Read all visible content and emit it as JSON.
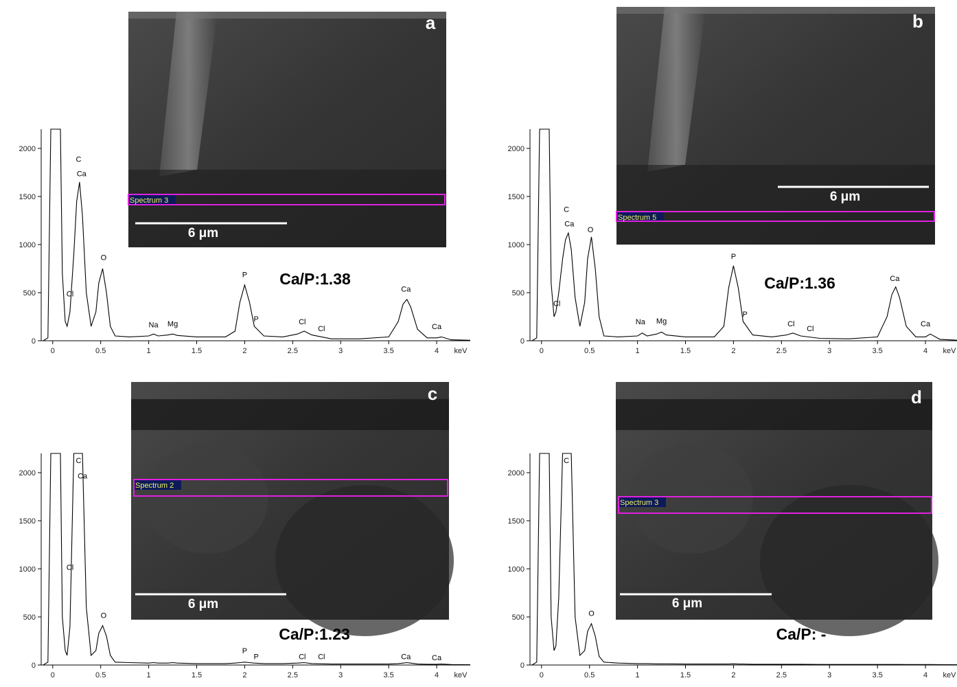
{
  "chart_data": [
    {
      "type": "line",
      "panel_label": "a",
      "inset_label": "Spectrum 3",
      "scale_bar_label": "6 μm",
      "ratio_label": "Ca/P:1.38",
      "x_label": "keV",
      "color": "#000000",
      "xlim": [
        -0.12,
        4.35
      ],
      "ylim": [
        0,
        2200
      ],
      "xticks": [
        0,
        0.5,
        1,
        1.5,
        2,
        2.5,
        3,
        3.5,
        4
      ],
      "yticks": [
        0,
        500,
        1000,
        1500,
        2000
      ],
      "x": [
        -0.1,
        -0.05,
        -0.02,
        0.08,
        0.1,
        0.13,
        0.15,
        0.18,
        0.22,
        0.25,
        0.28,
        0.31,
        0.35,
        0.4,
        0.45,
        0.48,
        0.52,
        0.56,
        0.6,
        0.65,
        0.8,
        1.0,
        1.05,
        1.1,
        1.2,
        1.25,
        1.3,
        1.5,
        1.8,
        1.9,
        1.95,
        2.0,
        2.05,
        2.1,
        2.2,
        2.4,
        2.55,
        2.62,
        2.7,
        2.9,
        3.2,
        3.5,
        3.6,
        3.65,
        3.69,
        3.73,
        3.8,
        3.9,
        4.0,
        4.05,
        4.15,
        4.35
      ],
      "values": [
        0,
        30,
        2200,
        2200,
        700,
        200,
        150,
        300,
        900,
        1450,
        1650,
        1300,
        500,
        150,
        300,
        600,
        750,
        500,
        150,
        50,
        40,
        50,
        70,
        50,
        60,
        70,
        55,
        40,
        40,
        100,
        400,
        580,
        400,
        150,
        50,
        40,
        70,
        100,
        60,
        20,
        20,
        40,
        200,
        380,
        430,
        350,
        120,
        30,
        30,
        40,
        10,
        5
      ],
      "annotations": [
        {
          "text": "C",
          "x": 0.27,
          "y": 1860
        },
        {
          "text": "Ca",
          "x": 0.3,
          "y": 1710
        },
        {
          "text": "Cl",
          "x": 0.18,
          "y": 460
        },
        {
          "text": "O",
          "x": 0.53,
          "y": 840
        },
        {
          "text": "Na",
          "x": 1.05,
          "y": 140
        },
        {
          "text": "Mg",
          "x": 1.25,
          "y": 150
        },
        {
          "text": "P",
          "x": 2.0,
          "y": 660
        },
        {
          "text": "P",
          "x": 2.12,
          "y": 200
        },
        {
          "text": "Cl",
          "x": 2.6,
          "y": 170
        },
        {
          "text": "Cl",
          "x": 2.8,
          "y": 100
        },
        {
          "text": "Ca",
          "x": 3.68,
          "y": 510
        },
        {
          "text": "Ca",
          "x": 4.0,
          "y": 120
        }
      ]
    },
    {
      "type": "line",
      "panel_label": "b",
      "inset_label": "Spectrum 5",
      "scale_bar_label": "6 μm",
      "ratio_label": "Ca/P:1.36",
      "x_label": "keV",
      "color": "#000000",
      "xlim": [
        -0.12,
        4.35
      ],
      "ylim": [
        0,
        2200
      ],
      "xticks": [
        0,
        0.5,
        1,
        1.5,
        2,
        2.5,
        3,
        3.5,
        4
      ],
      "yticks": [
        0,
        500,
        1000,
        1500,
        2000
      ],
      "x": [
        -0.1,
        -0.05,
        -0.02,
        0.08,
        0.1,
        0.13,
        0.15,
        0.18,
        0.22,
        0.25,
        0.28,
        0.31,
        0.35,
        0.4,
        0.45,
        0.48,
        0.52,
        0.56,
        0.6,
        0.65,
        0.8,
        1.0,
        1.05,
        1.1,
        1.2,
        1.25,
        1.3,
        1.5,
        1.8,
        1.9,
        1.95,
        2.0,
        2.05,
        2.1,
        2.2,
        2.4,
        2.55,
        2.62,
        2.7,
        2.9,
        3.2,
        3.5,
        3.6,
        3.65,
        3.69,
        3.73,
        3.8,
        3.9,
        4.0,
        4.05,
        4.15,
        4.35
      ],
      "values": [
        0,
        30,
        2200,
        2200,
        600,
        250,
        300,
        500,
        850,
        1050,
        1120,
        950,
        450,
        150,
        400,
        850,
        1080,
        750,
        250,
        50,
        40,
        50,
        80,
        50,
        70,
        90,
        60,
        40,
        40,
        150,
        550,
        780,
        550,
        200,
        60,
        40,
        60,
        80,
        50,
        25,
        20,
        40,
        250,
        480,
        560,
        450,
        150,
        40,
        40,
        70,
        15,
        5
      ],
      "annotations": [
        {
          "text": "C",
          "x": 0.26,
          "y": 1340
        },
        {
          "text": "Ca",
          "x": 0.29,
          "y": 1190
        },
        {
          "text": "Cl",
          "x": 0.16,
          "y": 360
        },
        {
          "text": "O",
          "x": 0.51,
          "y": 1130
        },
        {
          "text": "Na",
          "x": 1.03,
          "y": 170
        },
        {
          "text": "Mg",
          "x": 1.25,
          "y": 180
        },
        {
          "text": "P",
          "x": 2.0,
          "y": 850
        },
        {
          "text": "P",
          "x": 2.12,
          "y": 250
        },
        {
          "text": "Cl",
          "x": 2.6,
          "y": 150
        },
        {
          "text": "Cl",
          "x": 2.8,
          "y": 100
        },
        {
          "text": "Ca",
          "x": 3.68,
          "y": 620
        },
        {
          "text": "Ca",
          "x": 4.0,
          "y": 150
        }
      ]
    },
    {
      "type": "line",
      "panel_label": "c",
      "inset_label": "Spectrum 2",
      "scale_bar_label": "6 μm",
      "ratio_label": "Ca/P:1.23",
      "x_label": "keV",
      "color": "#000000",
      "xlim": [
        -0.12,
        4.35
      ],
      "ylim": [
        0,
        2200
      ],
      "xticks": [
        0,
        0.5,
        1,
        1.5,
        2,
        2.5,
        3,
        3.5,
        4
      ],
      "yticks": [
        0,
        500,
        1000,
        1500,
        2000
      ],
      "x": [
        -0.1,
        -0.05,
        -0.02,
        0.08,
        0.1,
        0.13,
        0.15,
        0.18,
        0.22,
        0.25,
        0.28,
        0.31,
        0.35,
        0.4,
        0.45,
        0.48,
        0.52,
        0.56,
        0.6,
        0.65,
        0.8,
        1.0,
        1.05,
        1.1,
        1.2,
        1.25,
        1.3,
        1.5,
        1.8,
        1.9,
        1.95,
        2.0,
        2.05,
        2.1,
        2.2,
        2.4,
        2.55,
        2.62,
        2.7,
        2.9,
        3.2,
        3.5,
        3.6,
        3.65,
        3.69,
        3.73,
        3.8,
        3.9,
        4.0,
        4.05,
        4.15,
        4.35
      ],
      "values": [
        0,
        30,
        2200,
        2200,
        500,
        150,
        100,
        400,
        2200,
        2200,
        2200,
        2200,
        600,
        100,
        150,
        330,
        410,
        300,
        100,
        30,
        25,
        20,
        25,
        20,
        20,
        25,
        20,
        15,
        15,
        20,
        25,
        30,
        25,
        20,
        15,
        15,
        20,
        25,
        15,
        10,
        10,
        10,
        15,
        20,
        25,
        20,
        10,
        8,
        8,
        10,
        5,
        3
      ],
      "annotations": [
        {
          "text": "C",
          "x": 0.27,
          "y": 2100
        },
        {
          "text": "Ca",
          "x": 0.31,
          "y": 1940
        },
        {
          "text": "Cl",
          "x": 0.18,
          "y": 990
        },
        {
          "text": "O",
          "x": 0.53,
          "y": 490
        },
        {
          "text": "P",
          "x": 2.0,
          "y": 120
        },
        {
          "text": "P",
          "x": 2.12,
          "y": 60
        },
        {
          "text": "Cl",
          "x": 2.6,
          "y": 60
        },
        {
          "text": "Cl",
          "x": 2.8,
          "y": 60
        },
        {
          "text": "Ca",
          "x": 3.68,
          "y": 60
        },
        {
          "text": "Ca",
          "x": 4.0,
          "y": 50
        }
      ]
    },
    {
      "type": "line",
      "panel_label": "d",
      "inset_label": "Spectrum 3",
      "scale_bar_label": "6 μm",
      "ratio_label": "Ca/P: -",
      "x_label": "keV",
      "color": "#000000",
      "xlim": [
        -0.12,
        4.35
      ],
      "ylim": [
        0,
        2200
      ],
      "xticks": [
        0,
        0.5,
        1,
        1.5,
        2,
        2.5,
        3,
        3.5,
        4
      ],
      "yticks": [
        0,
        500,
        1000,
        1500,
        2000
      ],
      "x": [
        -0.1,
        -0.05,
        -0.02,
        0.08,
        0.1,
        0.13,
        0.15,
        0.18,
        0.22,
        0.25,
        0.28,
        0.31,
        0.35,
        0.4,
        0.45,
        0.48,
        0.52,
        0.56,
        0.6,
        0.65,
        0.8,
        1.0,
        1.05,
        1.1,
        1.2,
        1.25,
        1.3,
        1.5,
        1.8,
        1.9,
        1.95,
        2.0,
        2.05,
        2.1,
        2.2,
        2.4,
        2.55,
        2.62,
        2.7,
        2.9,
        3.2,
        3.5,
        3.6,
        3.65,
        3.69,
        3.73,
        3.8,
        3.9,
        4.0,
        4.05,
        4.15,
        4.35
      ],
      "values": [
        0,
        30,
        2200,
        2200,
        500,
        150,
        200,
        700,
        2200,
        2200,
        2200,
        2200,
        500,
        100,
        150,
        350,
        430,
        300,
        90,
        30,
        20,
        15,
        15,
        15,
        12,
        12,
        12,
        10,
        10,
        10,
        10,
        12,
        10,
        10,
        8,
        8,
        8,
        8,
        8,
        6,
        6,
        6,
        6,
        6,
        6,
        6,
        5,
        5,
        5,
        5,
        4,
        3
      ],
      "annotations": [
        {
          "text": "C",
          "x": 0.26,
          "y": 2100
        },
        {
          "text": "O",
          "x": 0.52,
          "y": 510
        }
      ]
    }
  ]
}
